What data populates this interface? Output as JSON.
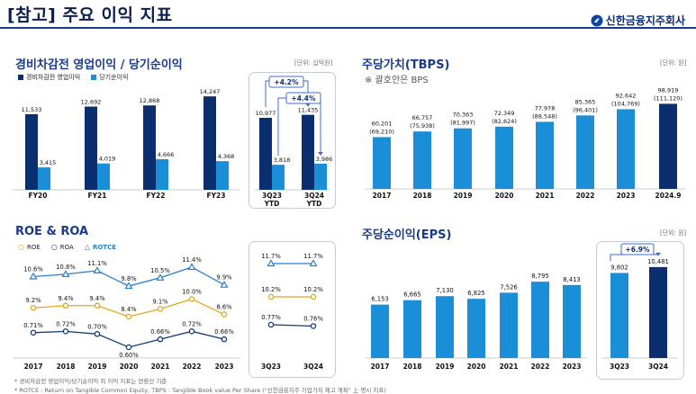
{
  "header": {
    "title": "[참고] 주요 이익 지표",
    "brand": "신한금융지주회사"
  },
  "panels": {
    "tl": {
      "title": "경비차감전 영업이익 / 당기순이익",
      "unit": "[단위: 십억원]"
    },
    "tr": {
      "title": "주당가치(TBPS)",
      "unit": "[단위: 원]",
      "note": "※ 괄호안은 BPS"
    },
    "bl": {
      "title": "ROE & ROA"
    },
    "br": {
      "title": "주당순이익(EPS)",
      "unit": "[단위: 원]"
    }
  },
  "footnotes": [
    "* 경비차감전 영업이익/당기순이익 외 이익 지표는 연환산 기준",
    "* ROTCE : Return on Tangible Common Equity, TBPS : Tangible Book value Per Share (\"신한금융지주 기업가치 제고 계획\" 上 명시 지표)"
  ],
  "colors": {
    "dark": "#0b2f6e",
    "light": "#1a8fd8",
    "ribbon": "#3e6ec8",
    "roe": "#e0a81e",
    "roa": "#123a7a",
    "rotce": "#2a7fcf"
  },
  "chart_data": [
    {
      "id": "tl",
      "type": "bar",
      "categories": [
        "FY20",
        "FY21",
        "FY22",
        "FY23",
        "3Q23\nYTD",
        "3Q24\nYTD"
      ],
      "series": [
        {
          "name": "경비차감전 영업이익",
          "values": [
            11533,
            12692,
            12868,
            14247,
            10977,
            11435
          ]
        },
        {
          "name": "당기순이익",
          "values": [
            3415,
            4019,
            4666,
            4368,
            3818,
            3986
          ]
        }
      ],
      "labels": [
        [
          "11,533",
          "12,692",
          "12,868",
          "14,247",
          "10,977",
          "11,435"
        ],
        [
          "3,415",
          "4,019",
          "4,666",
          "4,368",
          "3,818",
          "3,986"
        ]
      ],
      "annotations": [
        "+4.2%",
        "+4.4%"
      ],
      "ylim": [
        0,
        15500
      ]
    },
    {
      "id": "tr",
      "type": "bar",
      "categories": [
        "2017",
        "2018",
        "2019",
        "2020",
        "2021",
        "2022",
        "2023",
        "2024.9"
      ],
      "values": [
        60201,
        66757,
        70363,
        72349,
        77978,
        85365,
        92642,
        98919
      ],
      "labels": [
        "60,201",
        "66,757",
        "70,363",
        "72,349",
        "77,978",
        "85,365",
        "92,642",
        "98,919"
      ],
      "bps_labels": [
        "(69,210)",
        "(75,938)",
        "(81,997)",
        "(82,624)",
        "(88,548)",
        "(96,401)",
        "(104,769)",
        "(111,120)"
      ],
      "ylim": [
        0,
        115000
      ]
    },
    {
      "id": "bl",
      "type": "line",
      "categories": [
        "2017",
        "2018",
        "2019",
        "2020",
        "2021",
        "2022",
        "2023",
        "3Q23",
        "3Q24"
      ],
      "series": [
        {
          "name": "ROE",
          "values": [
            9.2,
            9.4,
            9.4,
            8.4,
            9.1,
            10.0,
            8.6,
            10.2,
            10.2
          ],
          "labels": [
            "9.2%",
            "9.4%",
            "9.4%",
            "8.4%",
            "9.1%",
            "10.0%",
            "8.6%",
            "10.2%",
            "10.2%"
          ]
        },
        {
          "name": "ROA",
          "values": [
            0.71,
            0.72,
            0.7,
            0.6,
            0.66,
            0.72,
            0.66,
            0.77,
            0.76
          ],
          "labels": [
            "0.71%",
            "0.72%",
            "0.70%",
            "0.60%",
            "0.66%",
            "0.72%",
            "0.66%",
            "0.77%",
            "0.76%"
          ]
        },
        {
          "name": "ROTCE",
          "values": [
            10.6,
            10.8,
            11.1,
            9.8,
            10.5,
            11.4,
            9.9,
            11.7,
            11.7
          ],
          "labels": [
            "10.6%",
            "10.8%",
            "11.1%",
            "9.8%",
            "10.5%",
            "11.4%",
            "9.9%",
            "11.7%",
            "11.7%"
          ]
        }
      ]
    },
    {
      "id": "br",
      "type": "bar",
      "categories": [
        "2017",
        "2018",
        "2019",
        "2020",
        "2021",
        "2022",
        "2023",
        "3Q23",
        "3Q24"
      ],
      "values": [
        6153,
        6665,
        7130,
        6825,
        7526,
        8795,
        8413,
        9802,
        10481
      ],
      "labels": [
        "6,153",
        "6,665",
        "7,130",
        "6,825",
        "7,526",
        "8,795",
        "8,413",
        "9,802",
        "10,481"
      ],
      "annotations": [
        "+6.9%"
      ],
      "ylim": [
        0,
        11400
      ]
    }
  ]
}
